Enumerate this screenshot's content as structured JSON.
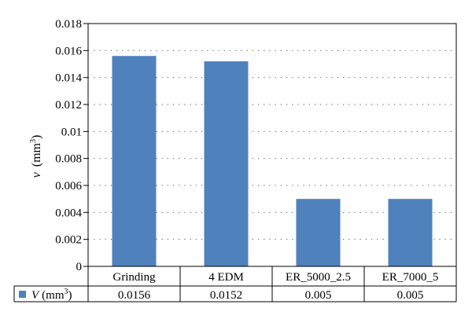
{
  "chart_data": {
    "type": "bar",
    "title": "",
    "xlabel": "",
    "ylabel": "v (mm³)",
    "ylabel_var": "v",
    "ylabel_unit": "(mm",
    "ylabel_sup": "3",
    "ylabel_close": ")",
    "ylim": [
      0,
      0.018
    ],
    "yticks": [
      "0",
      "0.002",
      "0.004",
      "0.006",
      "0.008",
      "0.01",
      "0.012",
      "0.014",
      "0.016",
      "0.018"
    ],
    "ytick_values": [
      0,
      0.002,
      0.004,
      0.006,
      0.008,
      0.01,
      0.012,
      0.014,
      0.016,
      0.018
    ],
    "grid": "horizontal-dotted",
    "categories": [
      "Grinding",
      "4 EDM",
      "ER_5000_2.5",
      "ER_7000_5"
    ],
    "series": [
      {
        "name": "V (mm³)",
        "name_var": "V",
        "name_unit": "(mm",
        "name_sup": "3",
        "name_close": ")",
        "values": [
          0.0156,
          0.0152,
          0.005,
          0.005
        ],
        "value_labels": [
          "0.0156",
          "0.0152",
          "0.005",
          "0.005"
        ],
        "color": "#4f81bd"
      }
    ],
    "legend": "data-table-below"
  }
}
